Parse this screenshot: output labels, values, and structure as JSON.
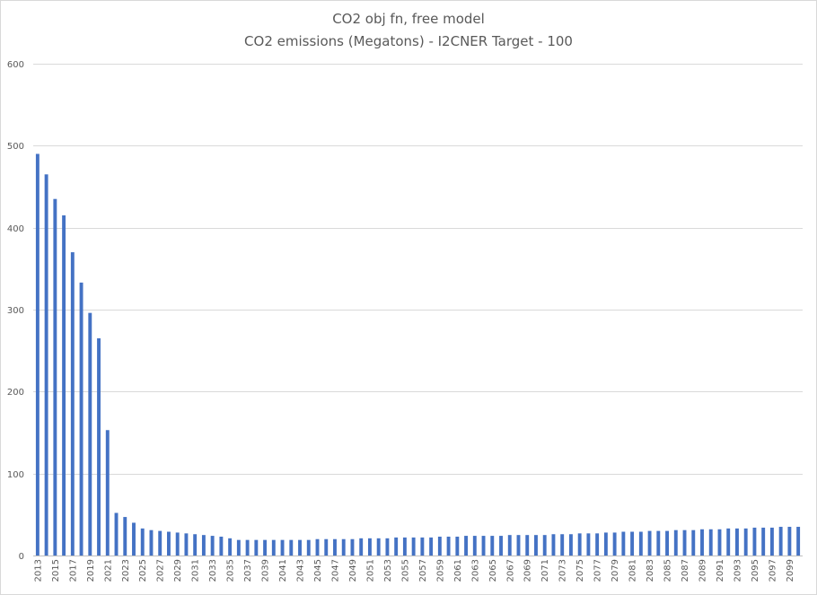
{
  "chart_data": {
    "type": "bar",
    "title": "CO2 obj fn, free model",
    "subtitle": "CO2 emissions (Megatons) - I2CNER Target - 100",
    "xlabel": "",
    "ylabel": "",
    "ylim": [
      0,
      600
    ],
    "yticks": [
      0,
      100,
      200,
      300,
      400,
      500,
      600
    ],
    "grid": true,
    "legend": "none",
    "bar_color": "#4472c4",
    "categories": [
      "2013",
      "2014",
      "2015",
      "2016",
      "2017",
      "2018",
      "2019",
      "2020",
      "2021",
      "2022",
      "2023",
      "2024",
      "2025",
      "2026",
      "2027",
      "2028",
      "2029",
      "2030",
      "2031",
      "2032",
      "2033",
      "2034",
      "2035",
      "2036",
      "2037",
      "2038",
      "2039",
      "2040",
      "2041",
      "2042",
      "2043",
      "2044",
      "2045",
      "2046",
      "2047",
      "2048",
      "2049",
      "2050",
      "2051",
      "2052",
      "2053",
      "2054",
      "2055",
      "2056",
      "2057",
      "2058",
      "2059",
      "2060",
      "2061",
      "2062",
      "2063",
      "2064",
      "2065",
      "2066",
      "2067",
      "2068",
      "2069",
      "2070",
      "2071",
      "2072",
      "2073",
      "2074",
      "2075",
      "2076",
      "2077",
      "2078",
      "2079",
      "2080",
      "2081",
      "2082",
      "2083",
      "2084",
      "2085",
      "2086",
      "2087",
      "2088",
      "2089",
      "2090",
      "2091",
      "2092",
      "2093",
      "2094",
      "2095",
      "2096",
      "2097",
      "2098",
      "2099",
      "2100"
    ],
    "values": [
      490,
      465,
      435,
      415,
      370,
      333,
      296,
      265,
      153,
      52,
      47,
      40,
      33,
      31,
      30,
      29,
      28,
      27,
      26,
      25,
      24,
      23,
      21,
      19,
      19,
      19,
      19,
      19,
      19,
      19,
      19,
      19,
      20,
      20,
      20,
      20,
      20,
      21,
      21,
      21,
      21,
      22,
      22,
      22,
      22,
      22,
      23,
      23,
      23,
      24,
      24,
      24,
      24,
      24,
      25,
      25,
      25,
      25,
      25,
      26,
      26,
      26,
      27,
      27,
      27,
      28,
      28,
      29,
      29,
      29,
      30,
      30,
      30,
      31,
      31,
      31,
      32,
      32,
      32,
      33,
      33,
      33,
      34,
      34,
      34,
      35,
      35,
      35
    ]
  }
}
